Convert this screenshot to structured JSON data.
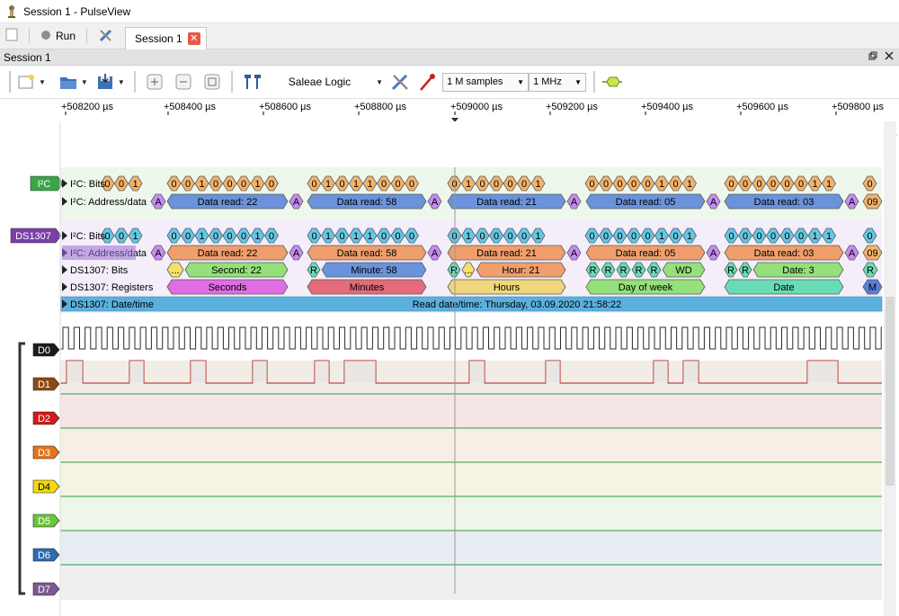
{
  "window": {
    "title": "Session 1 - PulseView"
  },
  "main_toolbar": {
    "run_label": "Run",
    "tab_label": "Session 1",
    "tab_close": "✕"
  },
  "session_bar": {
    "title": "Session 1",
    "restore_icon": "restore-icon",
    "close_icon": "close-icon"
  },
  "session_toolbar": {
    "device": "Saleae Logic",
    "samples": "1 M samples",
    "rate": "1 MHz"
  },
  "ruler": {
    "labels": [
      "+508200 µs",
      "+508400 µs",
      "+508600 µs",
      "+508800 µs",
      "+509000 µs",
      "+509200 µs",
      "+509400 µs",
      "+509600 µs",
      "+509800 µs"
    ]
  },
  "decoders": {
    "i2c_badge": "I²C",
    "ds1307_badge": "DS1307",
    "row_labels": {
      "i2c_bits": "I²C: Bits",
      "i2c_addr": "I²C: Address/data",
      "ds_i2c_bits": "I²C: Bits",
      "ds_i2c_addr": "I²C: Address/data",
      "ds_bits": "DS1307: Bits",
      "ds_regs": "DS1307: Registers",
      "ds_datetime": "DS1307: Date/time"
    },
    "bit_groups": [
      [
        "0",
        "0",
        "1"
      ],
      [
        "0",
        "0",
        "1",
        "0",
        "0",
        "0",
        "1",
        "0"
      ],
      [
        "0",
        "1",
        "0",
        "1",
        "1",
        "0",
        "0",
        "0"
      ],
      [
        "0",
        "1",
        "0",
        "0",
        "0",
        "0",
        "1"
      ],
      [
        "0",
        "0",
        "0",
        "0",
        "0",
        "1",
        "0",
        "1"
      ],
      [
        "0",
        "0",
        "0",
        "0",
        "0",
        "0",
        "1",
        "1"
      ],
      [
        "0"
      ]
    ],
    "ack": "A",
    "data_reads": [
      "Data read: 22",
      "Data read: 58",
      "Data read: 21",
      "Data read: 05",
      "Data read: 03"
    ],
    "tail_value": "09",
    "ds_bits_items": {
      "second": "Second: 22",
      "minute": "Minute: 58",
      "hour": "Hour: 21",
      "wd": "WD",
      "date": "Date: 3",
      "r": "R",
      "ellipsis": "..."
    },
    "registers": [
      "Seconds",
      "Minutes",
      "Hours",
      "Day of week",
      "Date",
      "M"
    ],
    "datetime_text": "Read date/time: Thursday, 03.09.2020 21:58:22"
  },
  "channels": [
    {
      "name": "D0",
      "color": "#1b1b1b"
    },
    {
      "name": "D1",
      "color": "#8b4a12"
    },
    {
      "name": "D2",
      "color": "#d21a1a"
    },
    {
      "name": "D3",
      "color": "#e5731a"
    },
    {
      "name": "D4",
      "color": "#f5d90f"
    },
    {
      "name": "D5",
      "color": "#6cc43b"
    },
    {
      "name": "D6",
      "color": "#2d6cb0"
    },
    {
      "name": "D7",
      "color": "#7b5a94"
    }
  ],
  "colors": {
    "bits": "#f4b36b",
    "addr_blue": "#6b93db",
    "addr_orange": "#ef9e6c",
    "ack": "#c78bf5",
    "bits_cyan": "#63c8e6",
    "reg_magenta": "#df6de3",
    "reg_red": "#e46b7a",
    "reg_yellow": "#f0d77b",
    "reg_green": "#94e07b",
    "reg_teal": "#68dcb5",
    "datetime": "#5bb0dd",
    "trace": "#2a9b3a",
    "trace_d1": "#b02020"
  }
}
